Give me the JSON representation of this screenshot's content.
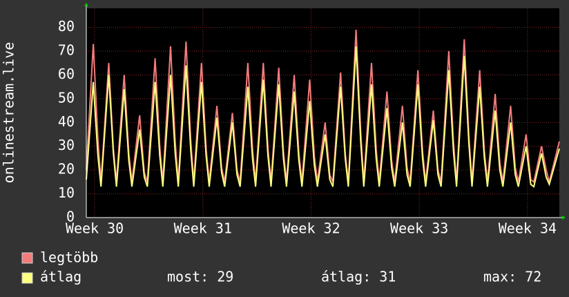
{
  "chart_data": {
    "type": "line",
    "ylabel": "onlinestream.live",
    "xlim": [
      0,
      30.6
    ],
    "xticks": [
      {
        "value": 0.54,
        "label": "Week 30"
      },
      {
        "value": 7.54,
        "label": "Week 31"
      },
      {
        "value": 14.54,
        "label": "Week 32"
      },
      {
        "value": 21.54,
        "label": "Week 33"
      },
      {
        "value": 28.54,
        "label": "Week 34"
      }
    ],
    "ylim": [
      0,
      88
    ],
    "yticks": [
      0,
      10,
      20,
      30,
      40,
      50,
      60,
      70,
      80
    ],
    "grid": true,
    "x": [
      0,
      0.45,
      0.75,
      0.95,
      1.45,
      1.75,
      1.95,
      2.45,
      2.75,
      2.95,
      3.45,
      3.75,
      3.95,
      4.45,
      4.75,
      4.95,
      5.45,
      5.75,
      5.95,
      6.45,
      6.75,
      6.95,
      7.45,
      7.75,
      7.95,
      8.45,
      8.75,
      8.95,
      9.45,
      9.75,
      9.95,
      10.45,
      10.75,
      10.95,
      11.45,
      11.75,
      11.95,
      12.45,
      12.75,
      12.95,
      13.45,
      13.75,
      13.95,
      14.45,
      14.75,
      14.95,
      15.45,
      15.75,
      15.95,
      16.45,
      16.75,
      16.95,
      17.45,
      17.75,
      17.95,
      18.45,
      18.75,
      18.95,
      19.45,
      19.75,
      19.95,
      20.45,
      20.75,
      20.95,
      21.45,
      21.75,
      21.95,
      22.45,
      22.75,
      22.95,
      23.45,
      23.75,
      23.95,
      24.45,
      24.75,
      24.95,
      25.45,
      25.75,
      25.95,
      26.45,
      26.75,
      26.95,
      27.45,
      27.75,
      27.95,
      28.45,
      28.75,
      28.95,
      29.45,
      29.75,
      29.95,
      30.6
    ],
    "series": [
      {
        "name": "legtöbb",
        "color": "#f47c7c",
        "values": [
          20,
          73,
          33,
          15,
          65,
          29,
          15,
          60,
          27,
          15,
          43,
          19,
          15,
          67,
          30,
          15,
          72,
          32,
          15,
          74,
          33,
          15,
          65,
          29,
          15,
          47,
          21,
          15,
          44,
          20,
          15,
          65,
          29,
          15,
          65,
          29,
          15,
          63,
          28,
          15,
          60,
          27,
          15,
          58,
          26,
          15,
          40,
          18,
          15,
          61,
          27,
          15,
          79,
          36,
          15,
          65,
          29,
          15,
          53,
          24,
          15,
          47,
          21,
          15,
          62,
          28,
          15,
          45,
          20,
          15,
          70,
          32,
          15,
          75,
          34,
          15,
          62,
          28,
          15,
          52,
          23,
          15,
          47,
          21,
          15,
          35,
          16,
          15,
          30,
          20,
          15,
          32
        ]
      },
      {
        "name": "átlag",
        "color": "#ffff80",
        "values": [
          16,
          57,
          26,
          13,
          60,
          27,
          13,
          54,
          24,
          13,
          37,
          17,
          13,
          57,
          26,
          13,
          60,
          27,
          13,
          64,
          29,
          13,
          57,
          26,
          13,
          42,
          19,
          13,
          40,
          18,
          13,
          55,
          25,
          13,
          58,
          26,
          13,
          56,
          25,
          13,
          53,
          24,
          13,
          49,
          22,
          13,
          35,
          16,
          13,
          55,
          25,
          13,
          72,
          32,
          13,
          56,
          25,
          13,
          46,
          21,
          13,
          40,
          18,
          13,
          56,
          25,
          13,
          41,
          18,
          13,
          62,
          28,
          13,
          68,
          31,
          13,
          55,
          25,
          13,
          45,
          20,
          13,
          40,
          18,
          13,
          30,
          14,
          13,
          27,
          17,
          14,
          29
        ]
      }
    ],
    "stats": [
      "most: 29",
      "átlag: 31",
      "max: 72"
    ]
  }
}
